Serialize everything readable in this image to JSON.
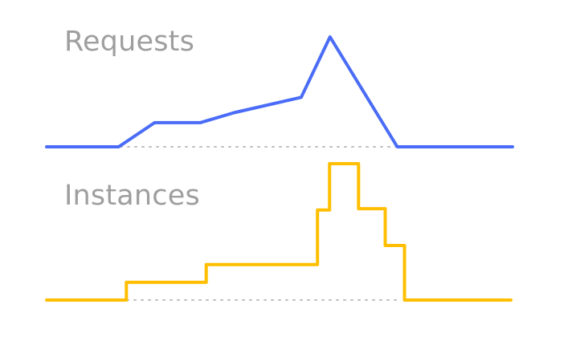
{
  "labels": {
    "requests": "Requests",
    "instances": "Instances"
  },
  "colors": {
    "requests_line": "#4a6cf7",
    "instances_line": "#ffbf00",
    "baseline_dots": "#bdbdbd",
    "label_text": "#9e9e9e"
  },
  "chart_data": [
    {
      "type": "line",
      "title": "Requests",
      "x": [
        0,
        1.5,
        2.25,
        3.2,
        3.9,
        5.3,
        5.9,
        7.3,
        9.7
      ],
      "y": [
        0,
        0,
        0.22,
        0.22,
        0.31,
        0.45,
        1.0,
        0,
        0
      ],
      "baseline": true
    },
    {
      "type": "line",
      "step": true,
      "title": "Instances",
      "x": [
        0,
        1.65,
        3.3,
        5.6,
        5.85,
        6.45,
        7.0,
        7.4,
        9.6
      ],
      "y": [
        0,
        0.13,
        0.26,
        0.66,
        1.0,
        0.67,
        0.4,
        0,
        0
      ],
      "baseline": true
    }
  ]
}
